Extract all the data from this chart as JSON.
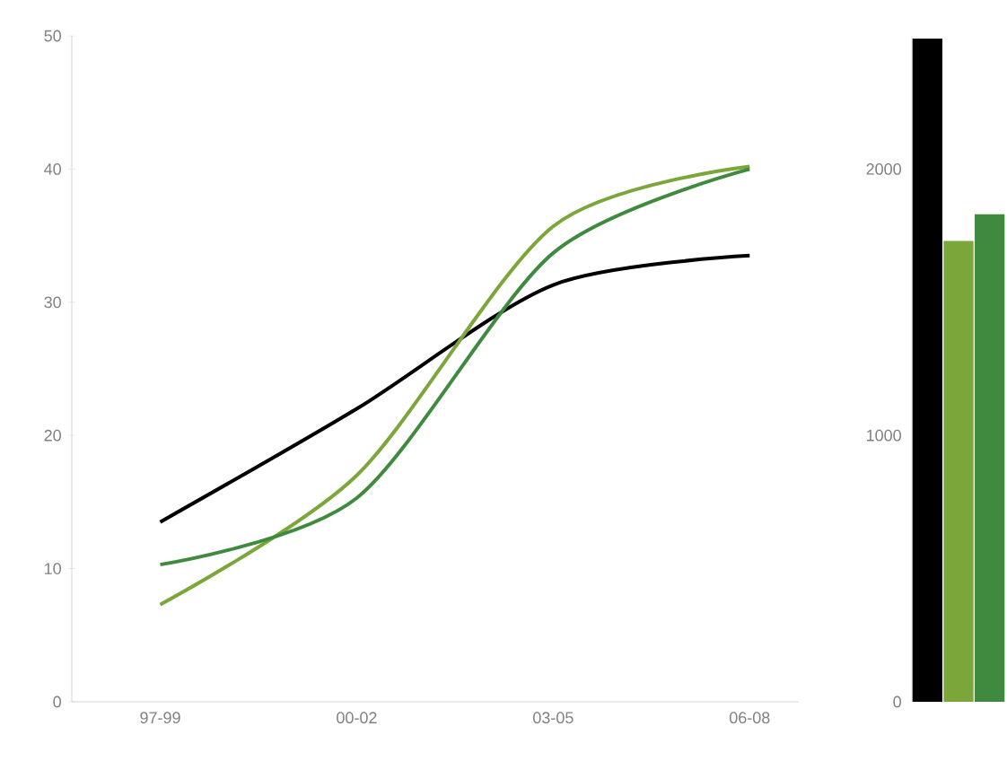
{
  "chart_data": [
    {
      "type": "line",
      "categories": [
        "97-99",
        "00-02",
        "03-05",
        "06-08"
      ],
      "ylim": [
        0,
        50
      ],
      "yticks": [
        0,
        10,
        20,
        30,
        40,
        50
      ],
      "grid": false,
      "marker": "none",
      "line_style": "solid",
      "series": [
        {
          "color": "#000000",
          "values": [
            13.5,
            22,
            31.3,
            33.5
          ]
        },
        {
          "color": "#7aa63a",
          "values": [
            7.3,
            17,
            35.7,
            40.2
          ]
        },
        {
          "color": "#3f8a3f",
          "values": [
            10.3,
            15.3,
            33.7,
            40
          ]
        }
      ]
    },
    {
      "type": "bar",
      "categories": [
        null,
        null,
        null
      ],
      "ylim": [
        0,
        2500
      ],
      "yticks": [
        0,
        1000,
        2000
      ],
      "grid": false,
      "series": [
        {
          "colors": [
            "#000000",
            "#7aa63a",
            "#3f8a3f"
          ],
          "values": [
            2490,
            1730,
            1830
          ]
        }
      ]
    }
  ]
}
